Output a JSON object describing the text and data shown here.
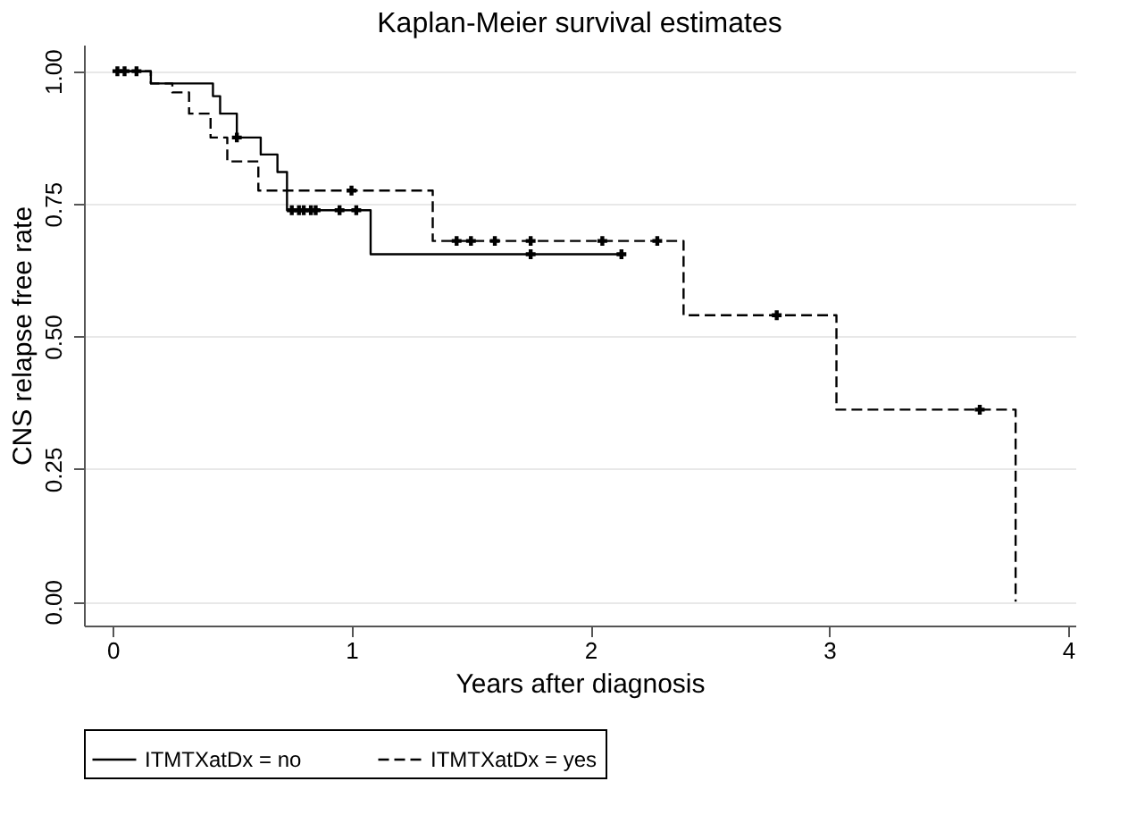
{
  "chart_data": {
    "type": "step",
    "title": "Kaplan-Meier survival estimates",
    "xlabel": "Years after diagnosis",
    "ylabel": "CNS relapse free rate",
    "xlim": [
      -0.12,
      4.03
    ],
    "xticks": [
      0,
      1,
      2,
      3,
      4
    ],
    "ylim": [
      -0.045,
      1.05
    ],
    "yticks": [
      {
        "value": 0,
        "label": "0.00"
      },
      {
        "value": 0.25,
        "label": "0.25"
      },
      {
        "value": 0.5,
        "label": "0.50"
      },
      {
        "value": 0.75,
        "label": "0.75"
      },
      {
        "value": 1,
        "label": "1.00"
      }
    ],
    "grid": "y",
    "legend": "bottom",
    "series": [
      {
        "name": "ITMTXatDx = no",
        "color": "#000000",
        "line_style": "solid",
        "x": [
          0,
          0.16,
          0.42,
          0.45,
          0.52,
          0.62,
          0.69,
          0.73,
          1.08,
          2.13
        ],
        "values": [
          1.0,
          0.977,
          0.953,
          0.92,
          0.875,
          0.843,
          0.81,
          0.738,
          0.655,
          0.655
        ]
      },
      {
        "name": "ITMTXatDx = yes",
        "color": "#000000",
        "line_style": "dashed",
        "x": [
          0,
          0.16,
          0.25,
          0.32,
          0.41,
          0.48,
          0.61,
          1.34,
          2.39,
          3.03,
          3.78,
          3.78
        ],
        "values": [
          1.0,
          0.977,
          0.96,
          0.92,
          0.875,
          0.83,
          0.775,
          0.68,
          0.54,
          0.362,
          0.362,
          0
        ]
      },
      {
        "type": "scatter",
        "marker": "cross",
        "color": "#000000",
        "x": [
          0.05,
          0.1,
          0.75,
          0.78,
          0.8,
          0.83,
          0.85,
          0.95,
          1.02,
          1.75,
          2.13
        ],
        "values": [
          1.0,
          1.0,
          0.738,
          0.738,
          0.738,
          0.738,
          0.738,
          0.738,
          0.738,
          0.655,
          0.655
        ]
      },
      {
        "type": "scatter",
        "marker": "cross",
        "color": "#000000",
        "x": [
          0.02,
          0.52,
          1.0,
          1.44,
          1.5,
          1.6,
          1.75,
          2.05,
          2.28,
          2.78,
          3.63
        ],
        "values": [
          1.0,
          0.875,
          0.775,
          0.68,
          0.68,
          0.68,
          0.68,
          0.68,
          0.68,
          0.54,
          0.362
        ]
      }
    ]
  }
}
